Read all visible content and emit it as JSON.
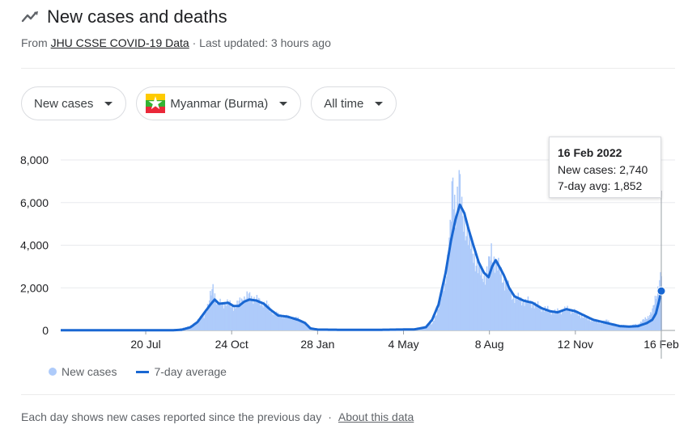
{
  "header": {
    "title": "New cases and deaths",
    "source_prefix": "From ",
    "source_link": "JHU CSSE COVID-19 Data",
    "updated": " · Last updated: 3 hours ago"
  },
  "controls": {
    "metric": "New cases",
    "location": "Myanmar (Burma)",
    "range": "All time"
  },
  "tooltip": {
    "date": "16 Feb 2022",
    "new_cases": "New cases: 2,740",
    "avg": "7-day avg: 1,852"
  },
  "legend": {
    "bars": "New cases",
    "line": "7-day average"
  },
  "footer": {
    "text": "Each day shows new cases reported since the previous day",
    "sep": "·",
    "link": "About this data"
  },
  "colors": {
    "bar": "#aecbfa",
    "line": "#1967d2",
    "grid": "#e8eaed",
    "axis_text": "#202124"
  },
  "chart_data": {
    "type": "bar",
    "ylim": [
      0,
      8000
    ],
    "y_ticks": [
      0,
      2000,
      4000,
      6000,
      8000
    ],
    "y_tick_labels": [
      "0",
      "2,000",
      "4,000",
      "6,000",
      "8,000"
    ],
    "x_tick_labels": [
      "20 Jul",
      "24 Oct",
      "28 Jan",
      "4 May",
      "8 Aug",
      "12 Nov",
      "16 Feb"
    ],
    "x_tick_days": [
      120,
      216,
      312,
      408,
      504,
      600,
      696
    ],
    "x_start_day": 25,
    "x_end_day": 696,
    "series": [
      {
        "name": "New cases",
        "values_by_day_anchor": [
          [
            25,
            5
          ],
          [
            100,
            5
          ],
          [
            150,
            10
          ],
          [
            170,
            200
          ],
          [
            185,
            700
          ],
          [
            190,
            1200
          ],
          [
            195,
            2100
          ],
          [
            200,
            1200
          ],
          [
            205,
            1300
          ],
          [
            212,
            1250
          ],
          [
            220,
            1100
          ],
          [
            228,
            1500
          ],
          [
            236,
            1600
          ],
          [
            245,
            1400
          ],
          [
            255,
            1200
          ],
          [
            263,
            800
          ],
          [
            275,
            650
          ],
          [
            290,
            550
          ],
          [
            300,
            300
          ],
          [
            304,
            100
          ],
          [
            310,
            30
          ],
          [
            330,
            10
          ],
          [
            380,
            15
          ],
          [
            420,
            50
          ],
          [
            440,
            300
          ],
          [
            448,
            1200
          ],
          [
            455,
            2500
          ],
          [
            460,
            4500
          ],
          [
            463,
            7000
          ],
          [
            466,
            5600
          ],
          [
            470,
            6900
          ],
          [
            473,
            5500
          ],
          [
            476,
            5200
          ],
          [
            480,
            4400
          ],
          [
            486,
            3600
          ],
          [
            492,
            2800
          ],
          [
            498,
            2500
          ],
          [
            503,
            3000
          ],
          [
            506,
            3600
          ],
          [
            510,
            3300
          ],
          [
            515,
            2800
          ],
          [
            522,
            2200
          ],
          [
            530,
            1600
          ],
          [
            540,
            1400
          ],
          [
            550,
            1300
          ],
          [
            560,
            1100
          ],
          [
            570,
            950
          ],
          [
            578,
            850
          ],
          [
            585,
            950
          ],
          [
            592,
            1000
          ],
          [
            600,
            850
          ],
          [
            610,
            600
          ],
          [
            620,
            450
          ],
          [
            630,
            350
          ],
          [
            636,
            500
          ],
          [
            640,
            300
          ],
          [
            650,
            250
          ],
          [
            660,
            200
          ],
          [
            670,
            300
          ],
          [
            680,
            600
          ],
          [
            686,
            900
          ],
          [
            690,
            1600
          ],
          [
            693,
            2200
          ],
          [
            696,
            2740
          ]
        ]
      },
      {
        "name": "7-day average",
        "values_by_day_anchor": [
          [
            25,
            10
          ],
          [
            100,
            10
          ],
          [
            150,
            10
          ],
          [
            160,
            30
          ],
          [
            170,
            150
          ],
          [
            178,
            400
          ],
          [
            185,
            800
          ],
          [
            192,
            1200
          ],
          [
            197,
            1450
          ],
          [
            202,
            1250
          ],
          [
            208,
            1280
          ],
          [
            212,
            1300
          ],
          [
            218,
            1150
          ],
          [
            224,
            1150
          ],
          [
            230,
            1350
          ],
          [
            236,
            1450
          ],
          [
            244,
            1400
          ],
          [
            252,
            1250
          ],
          [
            260,
            950
          ],
          [
            268,
            700
          ],
          [
            278,
            650
          ],
          [
            290,
            500
          ],
          [
            298,
            350
          ],
          [
            304,
            100
          ],
          [
            312,
            40
          ],
          [
            340,
            30
          ],
          [
            380,
            30
          ],
          [
            420,
            50
          ],
          [
            433,
            150
          ],
          [
            440,
            500
          ],
          [
            447,
            1200
          ],
          [
            455,
            2700
          ],
          [
            461,
            4200
          ],
          [
            466,
            5200
          ],
          [
            471,
            5900
          ],
          [
            476,
            5500
          ],
          [
            481,
            4700
          ],
          [
            486,
            4000
          ],
          [
            492,
            3200
          ],
          [
            498,
            2700
          ],
          [
            503,
            2500
          ],
          [
            507,
            3000
          ],
          [
            511,
            3300
          ],
          [
            515,
            3000
          ],
          [
            520,
            2600
          ],
          [
            526,
            2000
          ],
          [
            532,
            1600
          ],
          [
            542,
            1400
          ],
          [
            552,
            1300
          ],
          [
            562,
            1050
          ],
          [
            572,
            900
          ],
          [
            580,
            850
          ],
          [
            590,
            1000
          ],
          [
            600,
            900
          ],
          [
            610,
            700
          ],
          [
            620,
            500
          ],
          [
            630,
            400
          ],
          [
            640,
            300
          ],
          [
            650,
            200
          ],
          [
            660,
            180
          ],
          [
            670,
            200
          ],
          [
            680,
            350
          ],
          [
            686,
            500
          ],
          [
            690,
            800
          ],
          [
            693,
            1300
          ],
          [
            696,
            1852
          ]
        ]
      }
    ],
    "highlight": {
      "day": 696,
      "value": 1852
    }
  }
}
